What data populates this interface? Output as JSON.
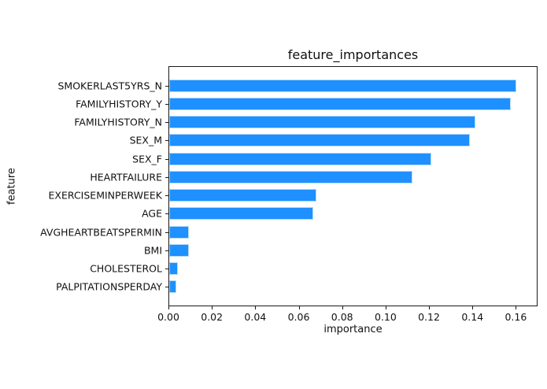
{
  "chart_data": {
    "type": "bar",
    "orientation": "horizontal",
    "title": "feature_importances",
    "xlabel": "importance",
    "ylabel": "feature",
    "categories": [
      "SMOKERLAST5YRS_N",
      "FAMILYHISTORY_Y",
      "FAMILYHISTORY_N",
      "SEX_M",
      "SEX_F",
      "HEARTFAILURE",
      "EXERCISEMINPERWEEK",
      "AGE",
      "AVGHEARTBEATSPERMIN",
      "BMI",
      "CHOLESTEROL",
      "PALPITATIONSPERDAY"
    ],
    "values": [
      0.1605,
      0.158,
      0.1415,
      0.139,
      0.1213,
      0.1126,
      0.068,
      0.0667,
      0.0091,
      0.0091,
      0.0039,
      0.0034
    ],
    "xlim": [
      0,
      0.17
    ],
    "x_ticks": [
      0.0,
      0.02,
      0.04,
      0.06,
      0.08,
      0.1,
      0.12,
      0.14,
      0.16
    ],
    "grid": false,
    "legend_position": "none",
    "bar_color": "#1e90ff",
    "bar_edge_color": "#b3d9f8",
    "axis_color": "#1a1a1a",
    "background_color": "#ffffff"
  }
}
